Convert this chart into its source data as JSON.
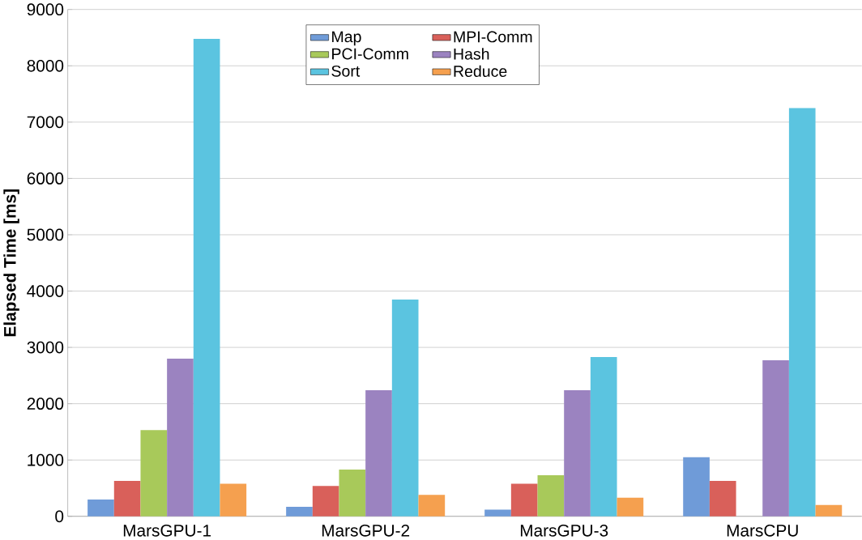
{
  "chart_data": {
    "type": "bar",
    "ylabel": "Elapsed Time [ms]",
    "categories": [
      "MarsGPU-1",
      "MarsGPU-2",
      "MarsGPU-3",
      "MarsCPU"
    ],
    "series": [
      {
        "name": "Map",
        "color": "#6f9bd8",
        "values": [
          300,
          170,
          120,
          1050
        ]
      },
      {
        "name": "MPI-Comm",
        "color": "#d9605a",
        "values": [
          630,
          540,
          580,
          630
        ]
      },
      {
        "name": "PCI-Comm",
        "color": "#a8c95a",
        "values": [
          1530,
          830,
          730,
          null
        ]
      },
      {
        "name": "Hash",
        "color": "#9b83c0",
        "values": [
          2800,
          2240,
          2240,
          2770
        ]
      },
      {
        "name": "Sort",
        "color": "#5bc4e0",
        "values": [
          8480,
          3850,
          2830,
          7250
        ]
      },
      {
        "name": "Reduce",
        "color": "#f5a04f",
        "values": [
          580,
          380,
          330,
          200
        ]
      }
    ],
    "ylim": [
      0,
      9000
    ],
    "yticks": [
      0,
      1000,
      2000,
      3000,
      4000,
      5000,
      6000,
      7000,
      8000,
      9000
    ],
    "grid": "y",
    "legend": "top"
  }
}
